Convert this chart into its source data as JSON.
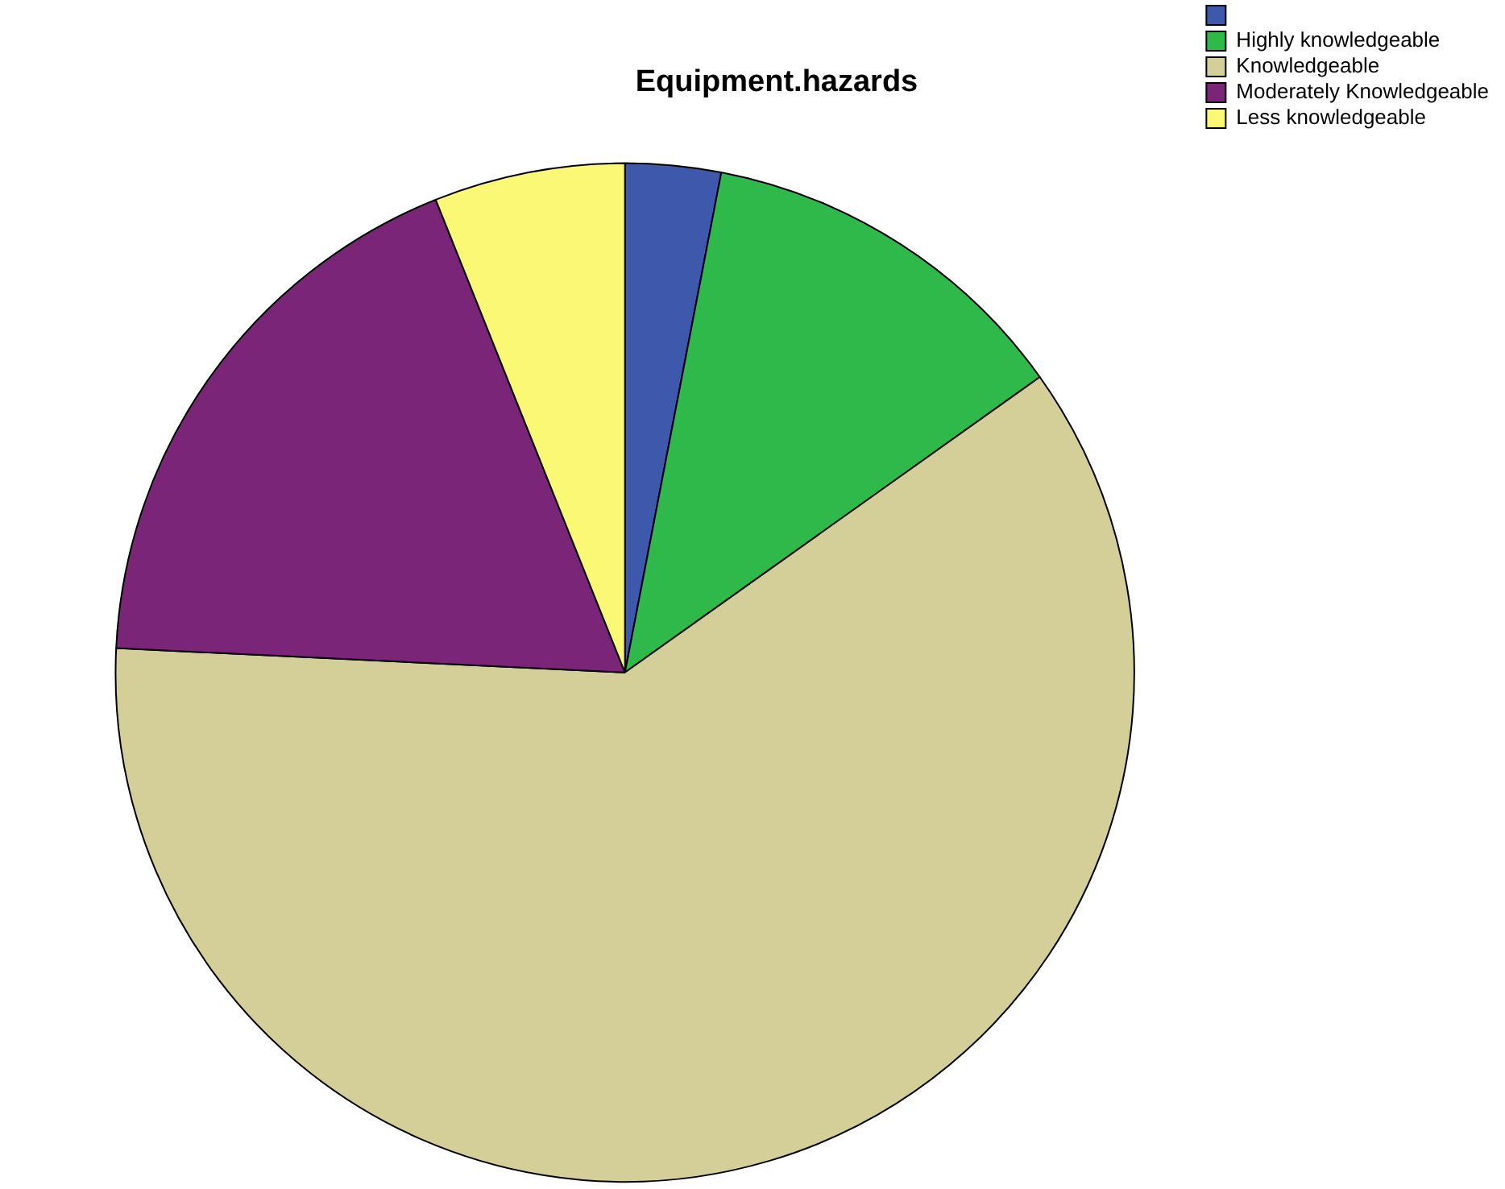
{
  "chart_data": {
    "type": "pie",
    "title": "Equipment.hazards",
    "categories": [
      null,
      "Highly knowledgeable",
      "Knowledgeable",
      "Moderately Knowledgeable",
      "Less knowledgeable"
    ],
    "values": [
      3.03,
      12.12,
      60.61,
      18.18,
      6.06
    ],
    "colors": [
      "#3e58ac",
      "#2fb94a",
      "#d4ce99",
      "#7a2577",
      "#fbf876"
    ],
    "legend": "top right"
  }
}
